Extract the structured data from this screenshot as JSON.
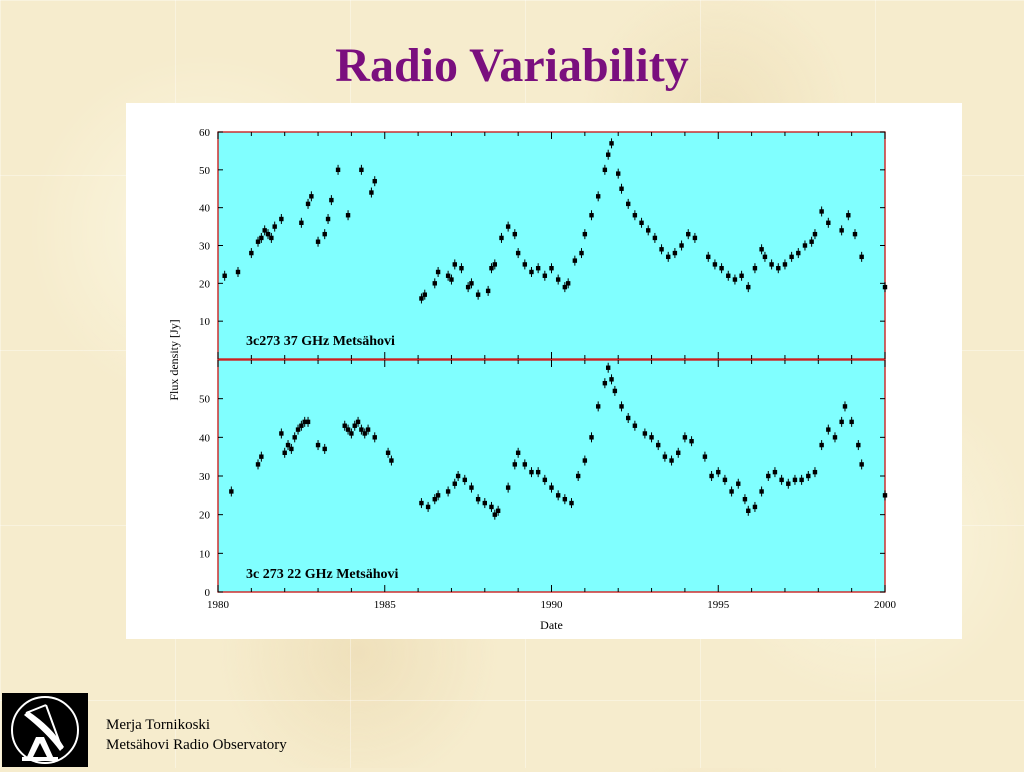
{
  "slide": {
    "title": "Radio Variability",
    "author": "Merja Tornikoski",
    "affiliation": "Metsähovi Radio Observatory"
  },
  "logo": {
    "icon": "radio-telescope-dish-icon"
  },
  "colors": {
    "title": "#7a0f7e",
    "plot_bg": "#80ffff",
    "axis_frame": "#cc2222",
    "marker": "#000000"
  },
  "chart_data": [
    {
      "type": "scatter",
      "label": "3c273  37 GHz Metsähovi",
      "xlabel": "Date",
      "ylabel": "Flux density [Jy]",
      "xlim": [
        1980,
        2000
      ],
      "ylim": [
        0,
        60
      ],
      "yticks": [
        10,
        20,
        30,
        40,
        50,
        60
      ],
      "xticks": [],
      "series": [
        {
          "x": [
            1980.2,
            1980.6,
            1981.0,
            1981.2,
            1981.3,
            1981.4,
            1981.5,
            1981.6,
            1981.7,
            1981.9,
            1982.5,
            1982.7,
            1982.8,
            1983.0,
            1983.2,
            1983.3,
            1983.4,
            1983.6,
            1983.9,
            1984.3,
            1984.6,
            1984.7,
            1986.1,
            1986.2,
            1986.5,
            1986.6,
            1986.9,
            1987.0,
            1987.1,
            1987.3,
            1987.5,
            1987.6,
            1987.8,
            1988.1,
            1988.2,
            1988.3,
            1988.5,
            1988.7,
            1988.9,
            1989.0,
            1989.2,
            1989.4,
            1989.6,
            1989.8,
            1990.0,
            1990.2,
            1990.4,
            1990.5,
            1990.7,
            1990.9,
            1991.0,
            1991.2,
            1991.4,
            1991.6,
            1991.7,
            1991.8,
            1992.0,
            1992.1,
            1992.3,
            1992.5,
            1992.7,
            1992.9,
            1993.1,
            1993.3,
            1993.5,
            1993.7,
            1993.9,
            1994.1,
            1994.3,
            1994.7,
            1994.9,
            1995.1,
            1995.3,
            1995.5,
            1995.7,
            1995.9,
            1996.1,
            1996.3,
            1996.4,
            1996.6,
            1996.8,
            1997.0,
            1997.2,
            1997.4,
            1997.6,
            1997.8,
            1997.9,
            1998.1,
            1998.3,
            1998.7,
            1998.9,
            1999.1,
            1999.3,
            2000.0
          ],
          "y": [
            22,
            23,
            28,
            31,
            32,
            34,
            33,
            32,
            35,
            37,
            36,
            41,
            43,
            31,
            33,
            37,
            42,
            50,
            38,
            50,
            44,
            47,
            16,
            17,
            20,
            23,
            22,
            21,
            25,
            24,
            19,
            20,
            17,
            18,
            24,
            25,
            32,
            35,
            33,
            28,
            25,
            23,
            24,
            22,
            24,
            21,
            19,
            20,
            26,
            28,
            33,
            38,
            43,
            50,
            54,
            57,
            49,
            45,
            41,
            38,
            36,
            34,
            32,
            29,
            27,
            28,
            30,
            33,
            32,
            27,
            25,
            24,
            22,
            21,
            22,
            19,
            24,
            29,
            27,
            25,
            24,
            25,
            27,
            28,
            30,
            31,
            33,
            39,
            36,
            34,
            38,
            33,
            27,
            19
          ]
        }
      ]
    },
    {
      "type": "scatter",
      "label": "3c 273  22 GHz Metsähovi",
      "xlabel": "Date",
      "ylabel": "Flux density [Jy]",
      "xlim": [
        1980,
        2000
      ],
      "ylim": [
        0,
        60
      ],
      "yticks": [
        0,
        10,
        20,
        30,
        40,
        50
      ],
      "xticks": [
        1980,
        1985,
        1990,
        1995,
        2000
      ],
      "series": [
        {
          "x": [
            1980.4,
            1981.2,
            1981.3,
            1981.9,
            1982.0,
            1982.1,
            1982.2,
            1982.3,
            1982.4,
            1982.5,
            1982.6,
            1982.7,
            1983.0,
            1983.2,
            1983.8,
            1983.9,
            1984.0,
            1984.1,
            1984.2,
            1984.3,
            1984.4,
            1984.5,
            1984.7,
            1985.1,
            1985.2,
            1986.1,
            1986.3,
            1986.5,
            1986.6,
            1986.9,
            1987.1,
            1987.2,
            1987.4,
            1987.6,
            1987.8,
            1988.0,
            1988.2,
            1988.3,
            1988.4,
            1988.7,
            1988.9,
            1989.0,
            1989.2,
            1989.4,
            1989.6,
            1989.8,
            1990.0,
            1990.2,
            1990.4,
            1990.6,
            1990.8,
            1991.0,
            1991.2,
            1991.4,
            1991.6,
            1991.7,
            1991.8,
            1991.9,
            1992.1,
            1992.3,
            1992.5,
            1992.8,
            1993.0,
            1993.2,
            1993.4,
            1993.6,
            1993.8,
            1994.0,
            1994.2,
            1994.6,
            1994.8,
            1995.0,
            1995.2,
            1995.4,
            1995.6,
            1995.8,
            1995.9,
            1996.1,
            1996.3,
            1996.5,
            1996.7,
            1996.9,
            1997.1,
            1997.3,
            1997.5,
            1997.7,
            1997.9,
            1998.1,
            1998.3,
            1998.5,
            1998.7,
            1998.8,
            1999.0,
            1999.2,
            1999.3,
            2000.0
          ],
          "y": [
            26,
            33,
            35,
            41,
            36,
            38,
            37,
            40,
            42,
            43,
            44,
            44,
            38,
            37,
            43,
            42,
            41,
            43,
            44,
            42,
            41,
            42,
            40,
            36,
            34,
            23,
            22,
            24,
            25,
            26,
            28,
            30,
            29,
            27,
            24,
            23,
            22,
            20,
            21,
            27,
            33,
            36,
            33,
            31,
            31,
            29,
            27,
            25,
            24,
            23,
            30,
            34,
            40,
            48,
            54,
            58,
            55,
            52,
            48,
            45,
            43,
            41,
            40,
            38,
            35,
            34,
            36,
            40,
            39,
            35,
            30,
            31,
            29,
            26,
            28,
            24,
            21,
            22,
            26,
            30,
            31,
            29,
            28,
            29,
            29,
            30,
            31,
            38,
            42,
            40,
            44,
            48,
            44,
            38,
            33,
            25
          ]
        }
      ]
    }
  ]
}
